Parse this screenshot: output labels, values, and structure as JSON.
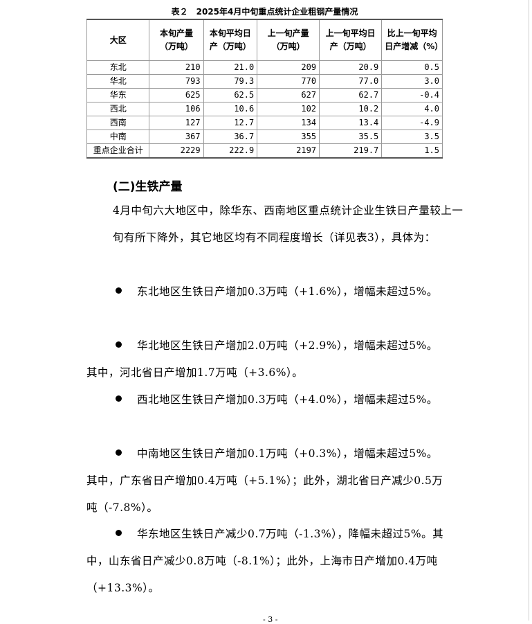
{
  "table": {
    "caption": "表２　2025年4月中旬重点统计企业粗钢产量情况",
    "headers": [
      "大区",
      "本旬产量（万吨）",
      "本旬平均日产（万吨）",
      "上一旬产量（万吨）",
      "上一旬平均日产（万吨）",
      "比上一旬平均日产增减（%）"
    ],
    "rows": [
      [
        "东北",
        "210",
        "21.0",
        "209",
        "20.9",
        "0.5"
      ],
      [
        "华北",
        "793",
        "79.3",
        "770",
        "77.0",
        "3.0"
      ],
      [
        "华东",
        "625",
        "62.5",
        "627",
        "62.7",
        "-0.4"
      ],
      [
        "西北",
        "106",
        "10.6",
        "102",
        "10.2",
        "4.0"
      ],
      [
        "西南",
        "127",
        "12.7",
        "134",
        "13.4",
        "-4.9"
      ],
      [
        "中南",
        "367",
        "36.7",
        "355",
        "35.5",
        "3.5"
      ],
      [
        "重点企业合计",
        "2229",
        "222.9",
        "2197",
        "219.7",
        "1.5"
      ]
    ]
  },
  "section_title": "(二)生铁产量",
  "intro": "4月中旬六大地区中，除华东、西南地区重点统计企业生铁日产量较上一旬有所下降外，其它地区均有不同程度增长（详见表3），具体为：",
  "bullets": [
    "东北地区生铁日产增加0.3万吨（+1.6%），增幅未超过5%。",
    "华北地区生铁日产增加2.0万吨（+2.9%），增幅未超过5%。其中，河北省日产增加1.7万吨（+3.6%）。",
    "西北地区生铁日产增加0.3万吨（+4.0%），增幅未超过5%。",
    "中南地区生铁日产增加0.1万吨（+0.3%），增幅未超过5%。其中，广东省日产增加0.4万吨（+5.1%）；此外，湖北省日产减少0.5万吨（-7.8%）。",
    "华东地区生铁日产减少0.7万吨（-1.3%），降幅未超过5%。其中，山东省日产减少0.8万吨（-8.1%）；此外，上海市日产增加0.4万吨（+13.3%）。"
  ],
  "page_number": "- 3 -"
}
